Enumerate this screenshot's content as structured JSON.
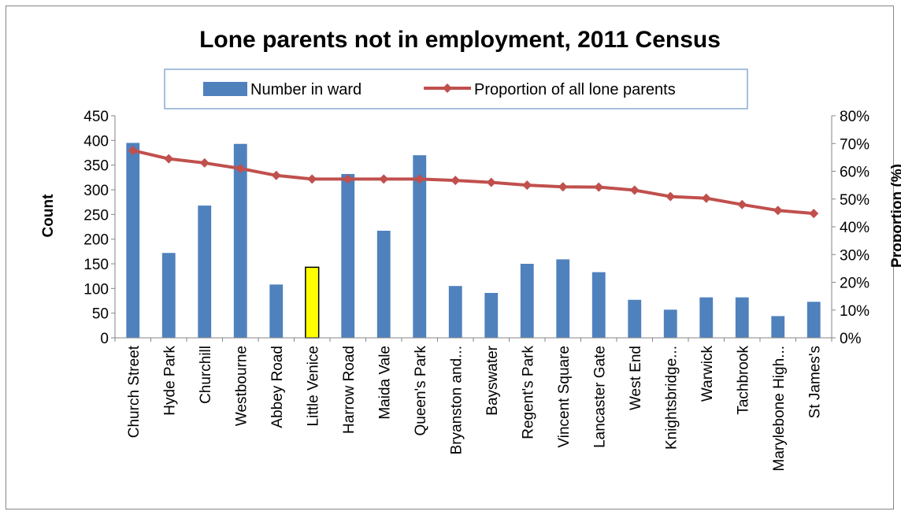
{
  "chart_data": {
    "type": "bar",
    "title": "Lone parents not in employment, 2011 Census",
    "ylabel": "Count",
    "y2label": "Proportion (%)",
    "ylim": [
      0,
      450
    ],
    "yticks": [
      0,
      50,
      100,
      150,
      200,
      250,
      300,
      350,
      400,
      450
    ],
    "y2lim": [
      0,
      80
    ],
    "y2ticks": [
      "0%",
      "10%",
      "20%",
      "30%",
      "40%",
      "50%",
      "60%",
      "70%",
      "80%"
    ],
    "legend_position": "top",
    "categories": [
      "Church Street",
      "Hyde Park",
      "Churchill",
      "Westbourne",
      "Abbey Road",
      "Little Venice",
      "Harrow Road",
      "Maida Vale",
      "Queen's Park",
      "Bryanston and...",
      "Bayswater",
      "Regent's Park",
      "Vincent Square",
      "Lancaster Gate",
      "West End",
      "Knightsbridge...",
      "Warwick",
      "Tachbrook",
      "Marylebone High...",
      "St James's"
    ],
    "highlight_category": "Little Venice",
    "series": [
      {
        "name": "Number in ward",
        "kind": "bar",
        "axis": "left",
        "color": "#4f81bd",
        "values": [
          395,
          172,
          268,
          393,
          108,
          143,
          332,
          217,
          370,
          105,
          91,
          150,
          159,
          133,
          77,
          57,
          82,
          82,
          44,
          73
        ]
      },
      {
        "name": "Proportion of all lone parents",
        "kind": "line",
        "axis": "right",
        "color": "#c0504d",
        "values": [
          67.5,
          64.5,
          63,
          61,
          58.5,
          57.2,
          57.2,
          57.2,
          57.2,
          56.7,
          56,
          55,
          54.4,
          54.3,
          53.2,
          50.9,
          50.3,
          48,
          45.9,
          44.8
        ]
      }
    ],
    "highlight_color": "#ffff00"
  }
}
